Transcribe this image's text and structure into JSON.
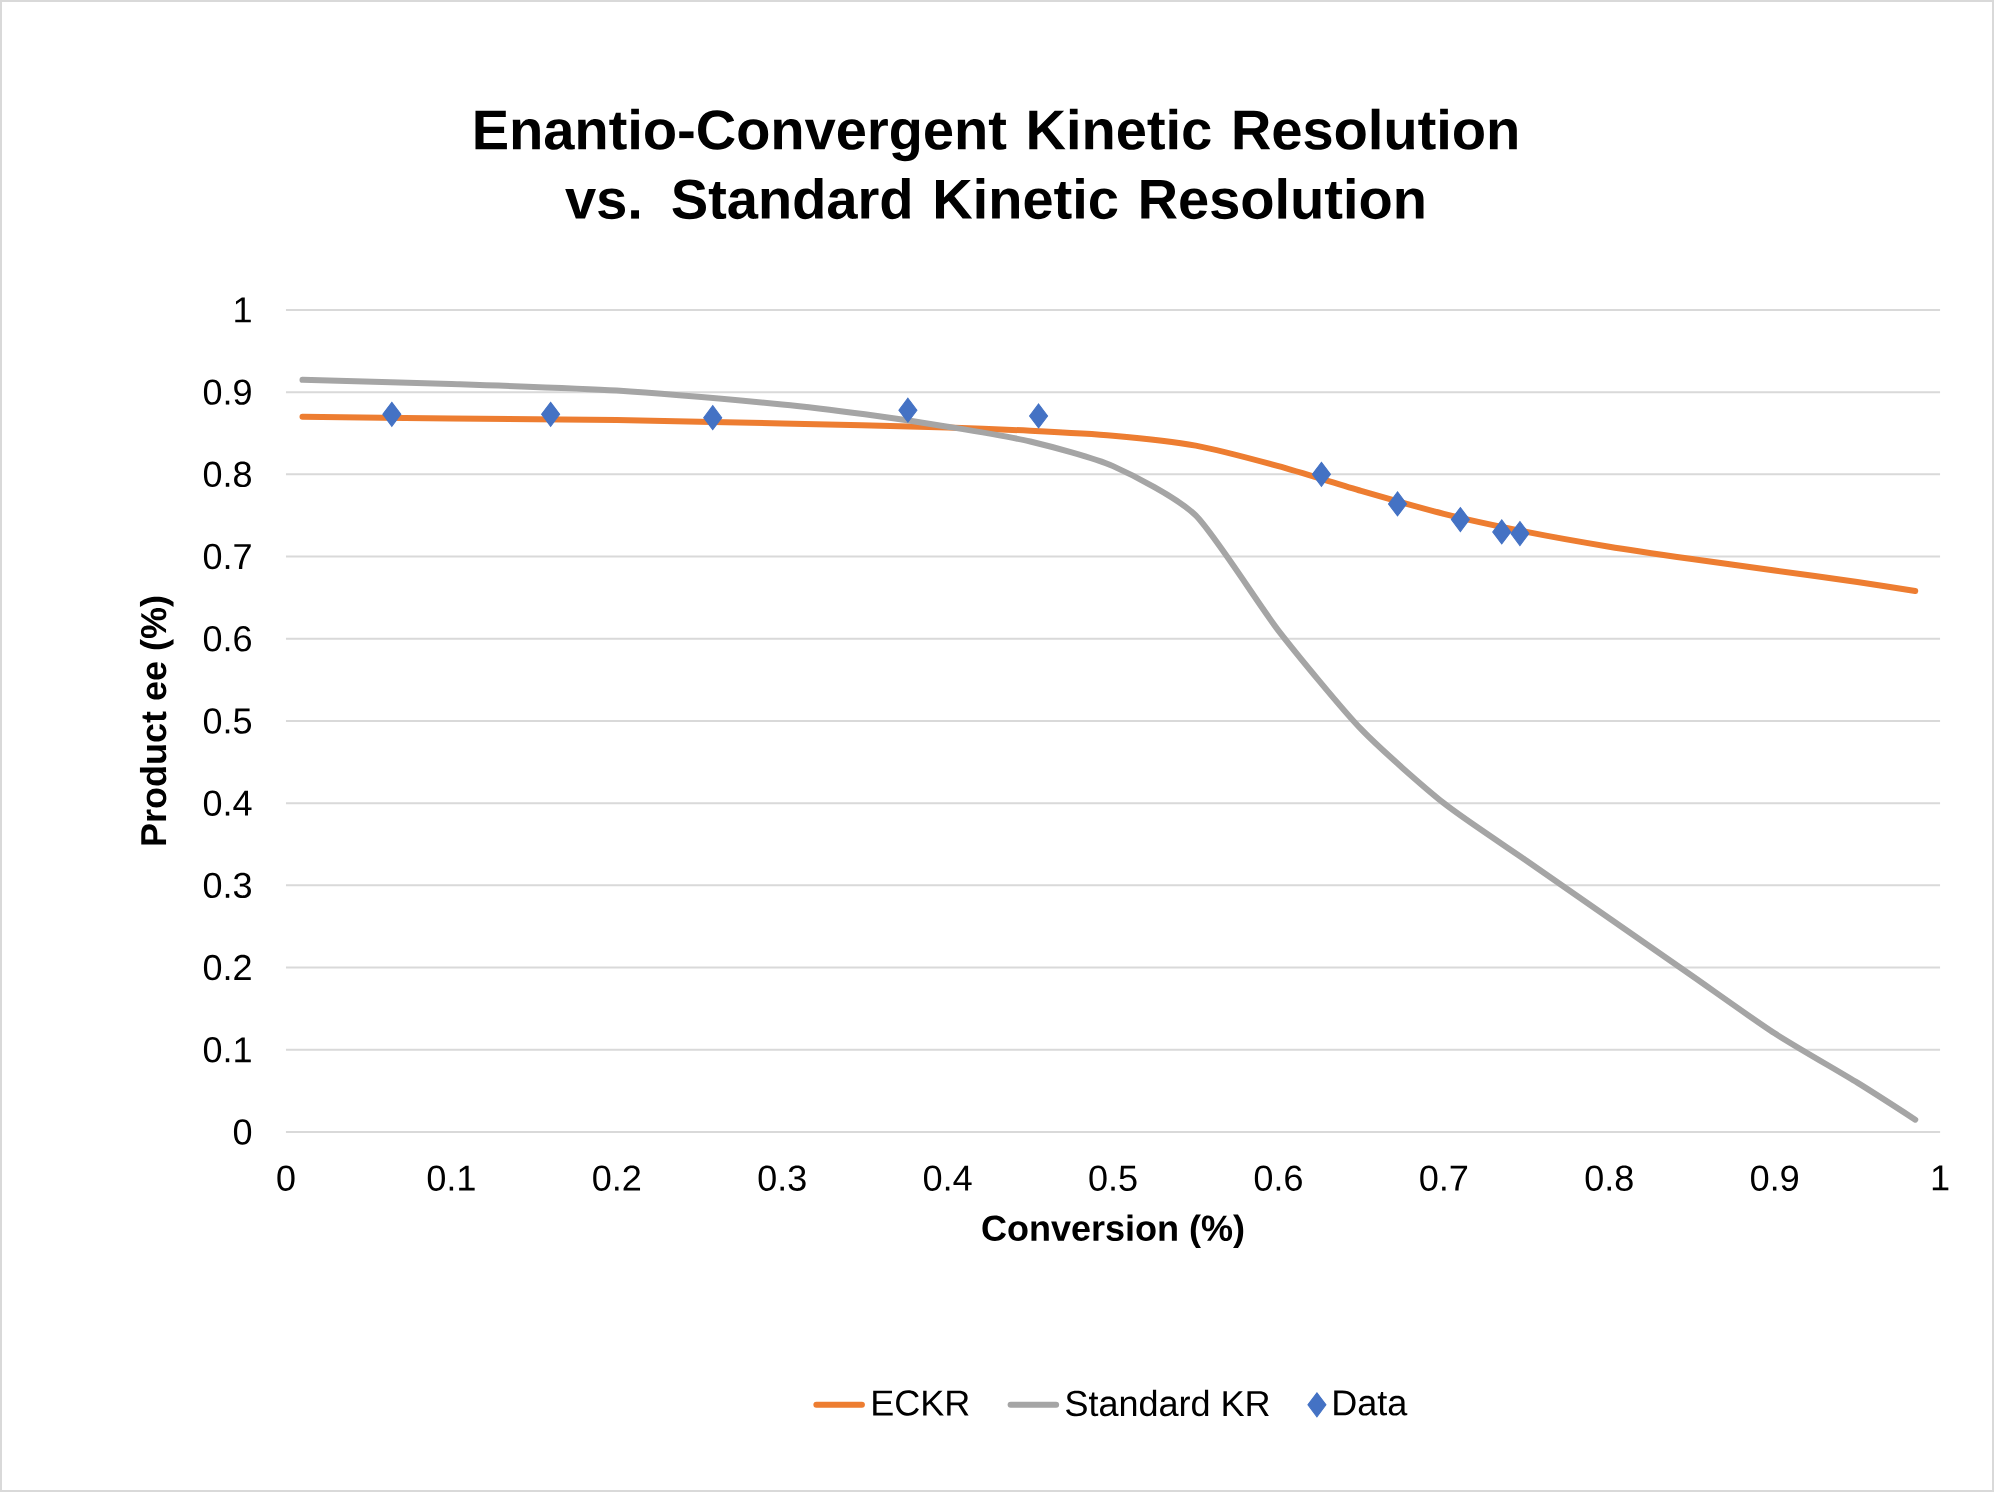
{
  "chart_data": {
    "type": "line",
    "title": "Enantio-Convergent Kinetic Resolution vs. Standard Kinetic Resolution",
    "xlabel": "Conversion (%)",
    "ylabel": "Product ee (%)",
    "xlim": [
      0,
      1
    ],
    "xticks": [
      0,
      0.1,
      0.2,
      0.3,
      0.4,
      0.5,
      0.6,
      0.7,
      0.8,
      0.9,
      1
    ],
    "ylim": [
      0,
      1
    ],
    "yticks": [
      0,
      0.1,
      0.2,
      0.3,
      0.4,
      0.5,
      0.6,
      0.7,
      0.8,
      0.9,
      1
    ],
    "grid": "y",
    "legend": "bottom",
    "series": [
      {
        "name": "ECKR",
        "color": "#ed7d31",
        "marker": "none",
        "x": [
          0.01,
          0.1,
          0.2,
          0.3,
          0.4,
          0.45,
          0.5,
          0.55,
          0.6,
          0.65,
          0.7,
          0.75,
          0.8,
          0.85,
          0.9,
          0.95,
          0.985
        ],
        "values": [
          0.87,
          0.868,
          0.866,
          0.862,
          0.857,
          0.853,
          0.847,
          0.835,
          0.81,
          0.78,
          0.752,
          0.73,
          0.712,
          0.697,
          0.683,
          0.669,
          0.658
        ]
      },
      {
        "name": "Standard KR",
        "color": "#a5a5a5",
        "marker": "none",
        "x": [
          0.01,
          0.1,
          0.2,
          0.3,
          0.35,
          0.4,
          0.45,
          0.5,
          0.55,
          0.6,
          0.65,
          0.7,
          0.75,
          0.8,
          0.85,
          0.9,
          0.95,
          0.985
        ],
        "values": [
          0.915,
          0.91,
          0.902,
          0.885,
          0.873,
          0.858,
          0.84,
          0.81,
          0.75,
          0.61,
          0.49,
          0.4,
          0.33,
          0.26,
          0.19,
          0.12,
          0.06,
          0.015
        ]
      },
      {
        "name": "Data",
        "type": "scatter",
        "color": "#4472c4",
        "marker": "diamond",
        "x": [
          0.064,
          0.16,
          0.258,
          0.376,
          0.455,
          0.626,
          0.672,
          0.71,
          0.735,
          0.746
        ],
        "values": [
          0.873,
          0.873,
          0.869,
          0.878,
          0.871,
          0.8,
          0.764,
          0.745,
          0.73,
          0.728
        ]
      }
    ]
  }
}
